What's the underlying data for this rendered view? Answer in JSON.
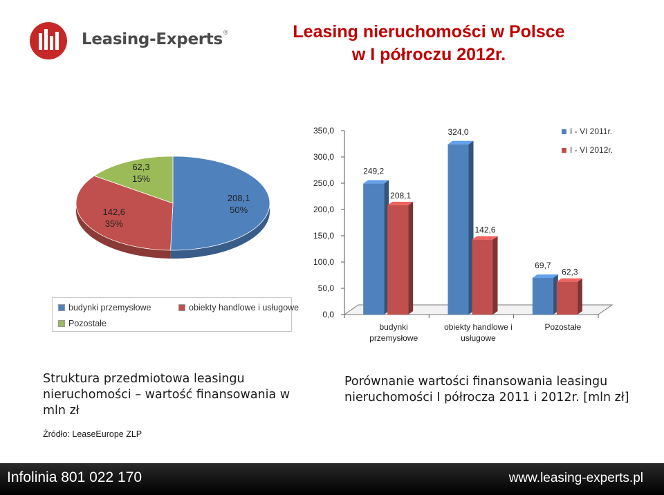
{
  "logo": {
    "text": "Leasing-Experts",
    "mark": "®"
  },
  "title": {
    "line1": "Leasing nieruchomości w Polsce",
    "line2": "w I półroczu 2012r."
  },
  "chart_data": [
    {
      "type": "pie",
      "categories": [
        "budynki przemysłowe",
        "obiekty handlowe i usługowe",
        "Pozostałe"
      ],
      "values": [
        208.1,
        142.6,
        62.3
      ],
      "value_labels": [
        "208,1",
        "142,6",
        "62,3"
      ],
      "percent_labels": [
        "50%",
        "35%",
        "15%"
      ],
      "colors": [
        "#4f81bd",
        "#c0504d",
        "#9bbb59"
      ],
      "legend": "bottom"
    },
    {
      "type": "bar",
      "categories": [
        "budynki przemysłowe",
        "obiekty handlowe i usługowe",
        "Pozostałe"
      ],
      "category_labels": [
        [
          "budynki",
          "przemysłowe"
        ],
        [
          "obiekty handlowe i",
          "usługowe"
        ],
        [
          "Pozostałe"
        ]
      ],
      "series": [
        {
          "name": "I - VI 2011r.",
          "values": [
            249.2,
            324.0,
            69.7
          ],
          "labels": [
            "249,2",
            "324,0",
            "69,7"
          ],
          "color": "#4f81bd"
        },
        {
          "name": "I - VI 2012r.",
          "values": [
            208.1,
            142.6,
            62.3
          ],
          "labels": [
            "208,1",
            "142,6",
            "62,3"
          ],
          "color": "#c0504d"
        }
      ],
      "ylim": [
        0,
        350
      ],
      "yticks": [
        "0,0",
        "50,0",
        "100,0",
        "150,0",
        "200,0",
        "250,0",
        "300,0",
        "350,0"
      ],
      "legend": "top-right",
      "grid": false
    }
  ],
  "captions": {
    "left": [
      "Struktura przedmiotowa leasingu",
      "nieruchomości – wartość finansowania w",
      "mln zł"
    ],
    "right": [
      "Porównanie wartości finansowania leasingu",
      "nieruchomości I półrocza 2011 i 2012r. [mln zł]"
    ]
  },
  "source": "Źródło: LeaseEurope  ZLP",
  "footer": {
    "left": "Infolinia 801 022 170",
    "right": "www.leasing-experts.pl"
  }
}
